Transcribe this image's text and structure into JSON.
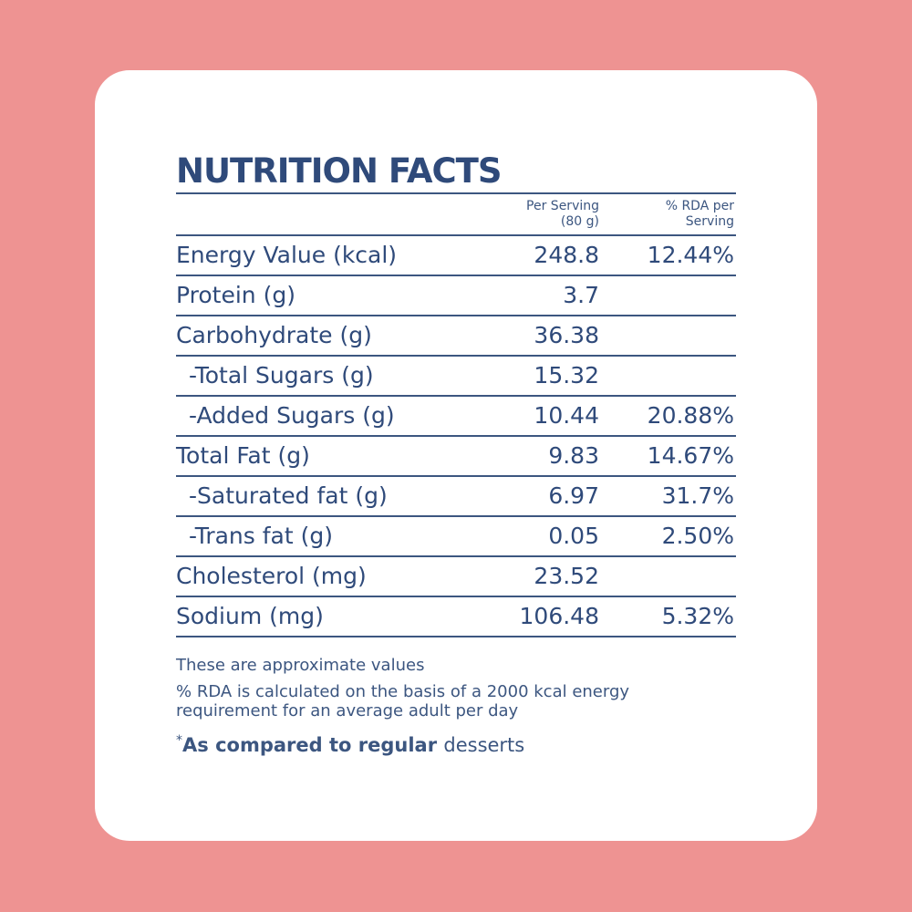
{
  "title": "NUTRITION FACTS",
  "columns": {
    "per_serving": "Per Serving\n(80 g)",
    "rda": "% RDA per\nServing"
  },
  "rows": [
    {
      "label": "Energy Value (kcal)",
      "value": "248.8",
      "rda": "12.44%",
      "sub": false
    },
    {
      "label": "Protein (g)",
      "value": "3.7",
      "rda": "",
      "sub": false
    },
    {
      "label": "Carbohydrate (g)",
      "value": "36.38",
      "rda": "",
      "sub": false
    },
    {
      "label": "-Total Sugars (g)",
      "value": "15.32",
      "rda": "",
      "sub": true
    },
    {
      "label": "-Added Sugars (g)",
      "value": "10.44",
      "rda": "20.88%",
      "sub": true
    },
    {
      "label": "Total Fat (g)",
      "value": "9.83",
      "rda": "14.67%",
      "sub": false
    },
    {
      "label": "-Saturated fat (g)",
      "value": "6.97",
      "rda": "31.7%",
      "sub": true
    },
    {
      "label": "-Trans fat (g)",
      "value": "0.05",
      "rda": "2.50%",
      "sub": true
    },
    {
      "label": "Cholesterol (mg)",
      "value": "23.52",
      "rda": "",
      "sub": false
    },
    {
      "label": "Sodium (mg)",
      "value": "106.48",
      "rda": "5.32%",
      "sub": false
    }
  ],
  "notes": {
    "approx": "These are approximate values",
    "rda_basis": "%  RDA is calculated on the basis of a 2000 kcal energy\nrequirement for an average adult per day"
  },
  "footnote": {
    "star": "*",
    "bold": "As compared to regular ",
    "light": "desserts"
  },
  "colors": {
    "background": "#ee9392",
    "card": "#ffffff",
    "text": "#2f4a7a"
  }
}
